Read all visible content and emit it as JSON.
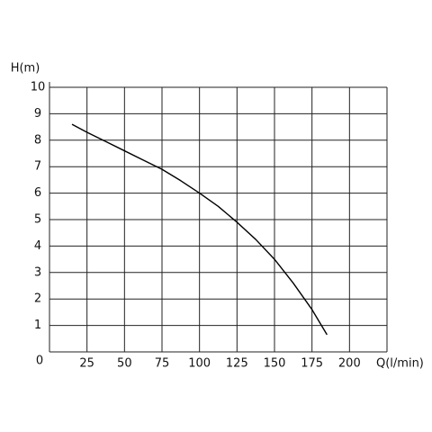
{
  "chart_data": {
    "type": "line",
    "x_label": "Q(l/min)",
    "y_label": "H(m)",
    "x": [
      15,
      25,
      37.5,
      50,
      62.5,
      75,
      87.5,
      100,
      112.5,
      125,
      137.5,
      150,
      162.5,
      175,
      185
    ],
    "series": [
      {
        "color": "#000000",
        "values": [
          8.6,
          8.3,
          7.95,
          7.6,
          7.25,
          6.9,
          6.47,
          6.0,
          5.5,
          4.9,
          4.25,
          3.5,
          2.6,
          1.6,
          0.65
        ]
      }
    ],
    "xlim": [
      0,
      225
    ],
    "xticks": [
      25,
      50,
      75,
      100,
      125,
      150,
      175,
      200
    ],
    "ylim": [
      0,
      10
    ],
    "yticks": [
      0,
      1,
      2,
      3,
      4,
      5,
      6,
      7,
      8,
      9,
      10
    ],
    "grid": true
  }
}
